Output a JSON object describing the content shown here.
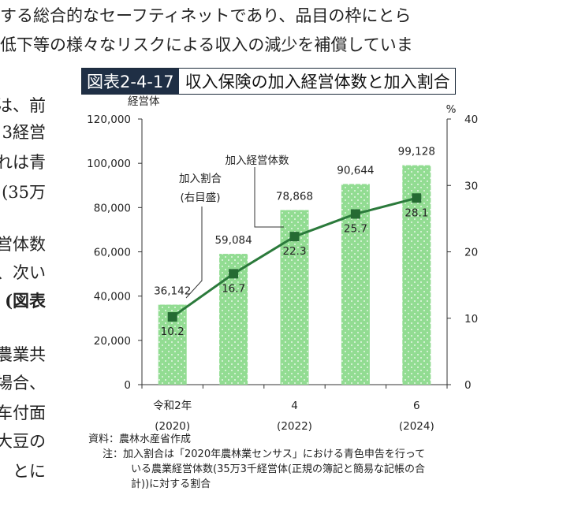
{
  "body_text": {
    "top_lines": [
      "する総合的なセーフティネットであり、品目の枠にとら",
      "低下等の様々なリスクによる収入の減少を補償していま"
    ],
    "left_fragments": [
      "は、前",
      "3経営",
      "れは青",
      "(35万",
      "営体数",
      "、次い",
      "(図表",
      "農業共",
      "場合、",
      "车付面",
      "大豆の",
      "とに"
    ]
  },
  "figure": {
    "number": "図表2-4-17",
    "title": "収入保険の加入経営体数と加入割合"
  },
  "chart_data": {
    "type": "bar+line",
    "left_axis_unit": "経営体",
    "right_axis_unit": "%",
    "left_ylim": [
      0,
      120000
    ],
    "right_ylim": [
      0,
      40
    ],
    "left_ticks": [
      "0",
      "20,000",
      "40,000",
      "60,000",
      "80,000",
      "100,000",
      "120,000"
    ],
    "right_ticks": [
      "0",
      "10",
      "20",
      "30",
      "40"
    ],
    "x": [
      "2020",
      "2021",
      "2022",
      "2023",
      "2024"
    ],
    "x_tick_labels": [
      {
        "top": "令和2年",
        "bottom": "(2020)"
      },
      {
        "top": "",
        "bottom": ""
      },
      {
        "top": "4",
        "bottom": "(2022)"
      },
      {
        "top": "",
        "bottom": ""
      },
      {
        "top": "6",
        "bottom": "(2024)"
      }
    ],
    "series": [
      {
        "type": "bar",
        "axis": "left",
        "values": [
          36142,
          59084,
          78868,
          90644,
          99128
        ],
        "labels": [
          "36,142",
          "59,084",
          "78,868",
          "90,644",
          "99,128"
        ]
      },
      {
        "type": "line",
        "axis": "right",
        "values": [
          10.2,
          16.7,
          22.3,
          25.7,
          28.1
        ],
        "labels": [
          "10.2",
          "16.7",
          "22.3",
          "25.7",
          "28.1"
        ]
      }
    ],
    "annotations": {
      "bar_series": "加入経営体数",
      "line_series_line1": "加入割合",
      "line_series_line2": "(右目盛)"
    },
    "colors": {
      "bar": "#92dc92",
      "line": "#2b7a3b",
      "marker": "#256b33"
    }
  },
  "notes": {
    "source": "資料：農林水産省作成",
    "note_line1": "注：加入割合は「2020年農林業センサス」における青色申告を行って",
    "note_line2": "いる農業経営体数(35万3千経営体(正規の簿記と簡易な記帳の合",
    "note_line3": "計))に対する割合"
  }
}
